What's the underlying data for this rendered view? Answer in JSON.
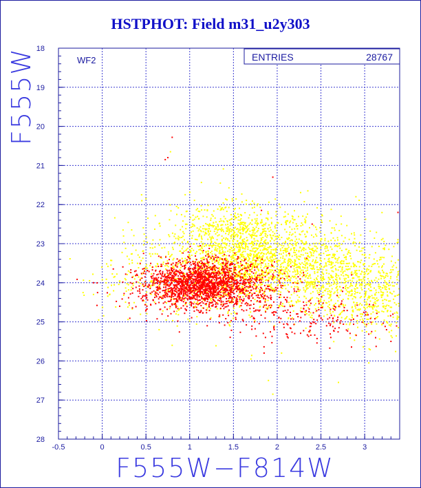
{
  "title": "HSTPHOT: Field m31_u2y303",
  "stats": {
    "label": "ENTRIES",
    "value": "28767"
  },
  "panel_label": "WF2",
  "colors": {
    "frame": "#1a1a9e",
    "axis_text": "#1a1aa0",
    "grid": "#3a3ad0",
    "yellow": "#ffff00",
    "red": "#ff0000",
    "title": "#1010c8"
  },
  "chart_data": {
    "type": "scatter",
    "title": "HSTPHOT: Field m31_u2y303",
    "xlabel": "F555W−F814W",
    "ylabel": "F555W",
    "xlim": [
      -0.5,
      3.4
    ],
    "ylim": [
      28,
      18
    ],
    "y_inverted": true,
    "grid": true,
    "x_ticks": [
      -0.5,
      0,
      0.5,
      1,
      1.5,
      2,
      2.5,
      3
    ],
    "x_tick_labels": [
      "-0.5",
      "0",
      "0.5",
      "1",
      "1.5",
      "2",
      "2.5",
      "3"
    ],
    "y_ticks": [
      18,
      19,
      20,
      21,
      22,
      23,
      24,
      25,
      26,
      27,
      28
    ],
    "y_tick_labels": [
      "18",
      "19",
      "20",
      "21",
      "22",
      "23",
      "24",
      "25",
      "26",
      "27",
      "28"
    ],
    "series": [
      {
        "color": "#ffff00",
        "population": "broad main group",
        "clusters": [
          {
            "cx": 1.7,
            "cy": 23.3,
            "sx": 0.55,
            "sy": 0.55,
            "n": 1500
          },
          {
            "cx": 2.6,
            "cy": 23.9,
            "sx": 0.45,
            "sy": 0.55,
            "n": 700
          },
          {
            "cx": 1.1,
            "cy": 24.0,
            "sx": 0.55,
            "sy": 0.45,
            "n": 500
          },
          {
            "cx": 3.15,
            "cy": 24.4,
            "sx": 0.25,
            "sy": 0.5,
            "n": 300
          },
          {
            "cx": 1.5,
            "cy": 22.6,
            "sx": 0.3,
            "sy": 0.3,
            "n": 250
          }
        ],
        "sparse_points": [
          [
            0.45,
            21.75
          ],
          [
            0.85,
            22.05
          ],
          [
            1.35,
            21.45
          ],
          [
            0.3,
            23.7
          ],
          [
            0.1,
            23.55
          ],
          [
            -0.1,
            24.3
          ],
          [
            2.9,
            21.8
          ],
          [
            2.35,
            21.65
          ],
          [
            0.65,
            25.2
          ],
          [
            0.8,
            25.6
          ],
          [
            1.9,
            26.5
          ],
          [
            2.7,
            26.55
          ],
          [
            1.95,
            26.85
          ],
          [
            3.1,
            24.6
          ],
          [
            3.38,
            22.9
          ],
          [
            0.78,
            20.65
          ],
          [
            1.52,
            22.1
          ],
          [
            0.5,
            21.85
          ],
          [
            2.05,
            25.8
          ],
          [
            1.7,
            25.95
          ]
        ]
      },
      {
        "color": "#ff0000",
        "population": "red concentrated group",
        "clusters": [
          {
            "cx": 1.1,
            "cy": 24.0,
            "sx": 0.28,
            "sy": 0.28,
            "n": 1300
          },
          {
            "cx": 1.5,
            "cy": 24.1,
            "sx": 0.35,
            "sy": 0.35,
            "n": 500
          },
          {
            "cx": 2.4,
            "cy": 24.9,
            "sx": 0.5,
            "sy": 0.3,
            "n": 200
          },
          {
            "cx": 0.65,
            "cy": 24.2,
            "sx": 0.3,
            "sy": 0.3,
            "n": 150
          }
        ],
        "sparse_points": [
          [
            0.75,
            20.8
          ],
          [
            0.8,
            20.28
          ],
          [
            0.72,
            20.85
          ],
          [
            -0.1,
            24.0
          ],
          [
            3.3,
            25.5
          ],
          [
            3.25,
            25.2
          ],
          [
            1.85,
            25.8
          ],
          [
            1.82,
            22.15
          ],
          [
            2.85,
            23.8
          ],
          [
            3.38,
            22.2
          ],
          [
            2.4,
            22.5
          ],
          [
            1.95,
            21.3
          ],
          [
            3.08,
            25.25
          ],
          [
            0.2,
            24.6
          ],
          [
            1.45,
            24.7
          ],
          [
            2.2,
            25.3
          ],
          [
            1.2,
            25.1
          ]
        ]
      }
    ]
  }
}
